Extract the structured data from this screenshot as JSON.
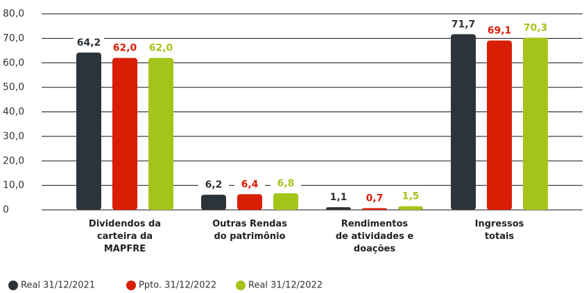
{
  "chart_data": {
    "type": "bar",
    "categories": [
      "Dividendos da\ncarteira da\nMAPFRE",
      "Outras Rendas\ndo patrimônio",
      "Rendimentos\nde atividades e\ndoações",
      "Ingressos\ntotais"
    ],
    "series": [
      {
        "name": "Real 31/12/2021",
        "color": "#2d3439",
        "values": [
          64.2,
          6.2,
          1.1,
          71.7
        ],
        "value_labels": [
          "64,2",
          "6,2",
          "1,1",
          "71,7"
        ]
      },
      {
        "name": "Ppto. 31/12/2022",
        "color": "#d81e05",
        "values": [
          62.0,
          6.4,
          0.7,
          69.1
        ],
        "value_labels": [
          "62,0",
          "6,4",
          "0,7",
          "69,1"
        ]
      },
      {
        "name": "Real 31/12/2022",
        "color": "#a4c41a",
        "values": [
          62.0,
          6.8,
          1.5,
          70.3
        ],
        "value_labels": [
          "62,0",
          "6,8",
          "1,5",
          "70,3"
        ]
      }
    ],
    "ylim": [
      0,
      80
    ],
    "yticks": [
      0,
      {
        "value": 10,
        "label": "10,0"
      },
      {
        "value": 20,
        "label": "20,0"
      },
      {
        "value": 30,
        "label": "30,0"
      },
      {
        "value": 40,
        "label": "40,0"
      },
      {
        "value": 50,
        "label": "50,0"
      },
      {
        "value": 60,
        "label": "60,0"
      },
      {
        "value": 70,
        "label": "70,0"
      },
      {
        "value": 80,
        "label": "80,0"
      }
    ],
    "grid": true,
    "legend": "bottom-left"
  }
}
